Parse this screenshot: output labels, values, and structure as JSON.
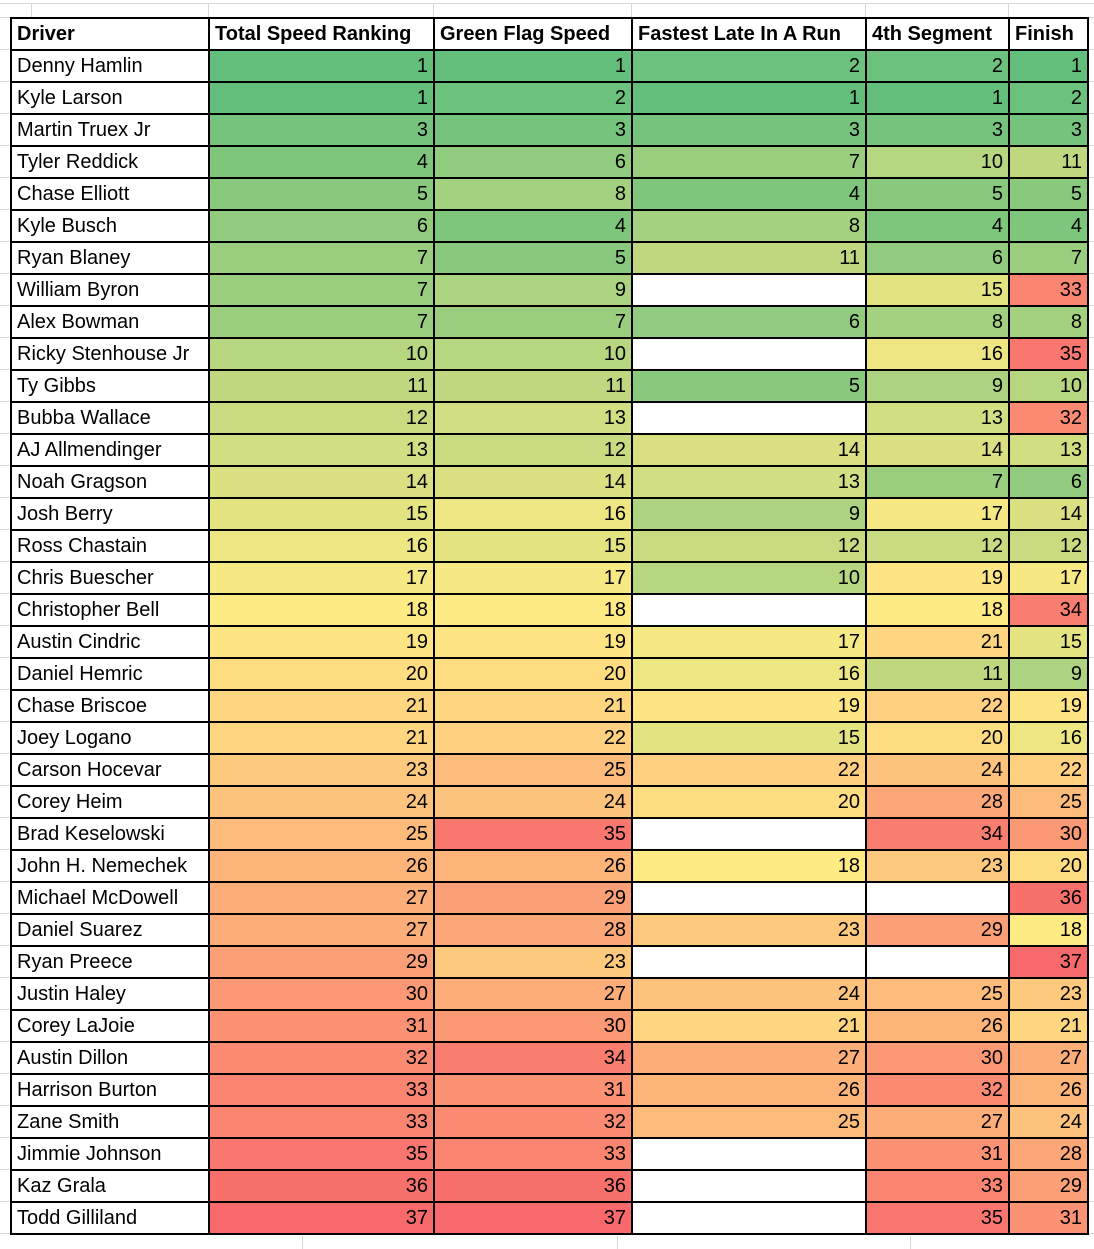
{
  "chart_data": {
    "type": "table",
    "title": "NASCAR driver speed ranking heatmap table",
    "columns": [
      "Driver",
      "Total Speed Ranking",
      "Green Flag Speed",
      "Fastest Late In A Run",
      "4th Segment",
      "Finish"
    ],
    "rows": [
      {
        "driver": "Denny Hamlin",
        "values": [
          1,
          1,
          2,
          2,
          1
        ]
      },
      {
        "driver": "Kyle Larson",
        "values": [
          1,
          2,
          1,
          1,
          2
        ]
      },
      {
        "driver": "Martin Truex Jr",
        "values": [
          3,
          3,
          3,
          3,
          3
        ]
      },
      {
        "driver": "Tyler Reddick",
        "values": [
          4,
          6,
          7,
          10,
          11
        ]
      },
      {
        "driver": "Chase Elliott",
        "values": [
          5,
          8,
          4,
          5,
          5
        ]
      },
      {
        "driver": "Kyle Busch",
        "values": [
          6,
          4,
          8,
          4,
          4
        ]
      },
      {
        "driver": "Ryan Blaney",
        "values": [
          7,
          5,
          11,
          6,
          7
        ]
      },
      {
        "driver": "William Byron",
        "values": [
          7,
          9,
          null,
          15,
          33
        ]
      },
      {
        "driver": "Alex Bowman",
        "values": [
          7,
          7,
          6,
          8,
          8
        ]
      },
      {
        "driver": "Ricky Stenhouse Jr",
        "values": [
          10,
          10,
          null,
          16,
          35
        ]
      },
      {
        "driver": "Ty Gibbs",
        "values": [
          11,
          11,
          5,
          9,
          10
        ]
      },
      {
        "driver": "Bubba Wallace",
        "values": [
          12,
          13,
          null,
          13,
          32
        ]
      },
      {
        "driver": "AJ Allmendinger",
        "values": [
          13,
          12,
          14,
          14,
          13
        ]
      },
      {
        "driver": "Noah Gragson",
        "values": [
          14,
          14,
          13,
          7,
          6
        ]
      },
      {
        "driver": "Josh Berry",
        "values": [
          15,
          16,
          9,
          17,
          14
        ]
      },
      {
        "driver": "Ross Chastain",
        "values": [
          16,
          15,
          12,
          12,
          12
        ]
      },
      {
        "driver": "Chris Buescher",
        "values": [
          17,
          17,
          10,
          19,
          17
        ]
      },
      {
        "driver": "Christopher Bell",
        "values": [
          18,
          18,
          null,
          18,
          34
        ]
      },
      {
        "driver": "Austin Cindric",
        "values": [
          19,
          19,
          17,
          21,
          15
        ]
      },
      {
        "driver": "Daniel Hemric",
        "values": [
          20,
          20,
          16,
          11,
          9
        ]
      },
      {
        "driver": "Chase Briscoe",
        "values": [
          21,
          21,
          19,
          22,
          19
        ]
      },
      {
        "driver": "Joey Logano",
        "values": [
          21,
          22,
          15,
          20,
          16
        ]
      },
      {
        "driver": "Carson Hocevar",
        "values": [
          23,
          25,
          22,
          24,
          22
        ]
      },
      {
        "driver": "Corey Heim",
        "values": [
          24,
          24,
          20,
          28,
          25
        ]
      },
      {
        "driver": "Brad Keselowski",
        "values": [
          25,
          35,
          null,
          34,
          30
        ]
      },
      {
        "driver": "John H. Nemechek",
        "values": [
          26,
          26,
          18,
          23,
          20
        ]
      },
      {
        "driver": "Michael McDowell",
        "values": [
          27,
          29,
          null,
          null,
          36
        ]
      },
      {
        "driver": "Daniel Suarez",
        "values": [
          27,
          28,
          23,
          29,
          18
        ]
      },
      {
        "driver": "Ryan Preece",
        "values": [
          29,
          23,
          null,
          null,
          37
        ]
      },
      {
        "driver": "Justin Haley",
        "values": [
          30,
          27,
          24,
          25,
          23
        ]
      },
      {
        "driver": "Corey LaJoie",
        "values": [
          31,
          30,
          21,
          26,
          21
        ]
      },
      {
        "driver": "Austin Dillon",
        "values": [
          32,
          34,
          27,
          30,
          27
        ]
      },
      {
        "driver": "Harrison Burton",
        "values": [
          33,
          31,
          26,
          32,
          26
        ]
      },
      {
        "driver": "Zane Smith",
        "values": [
          33,
          32,
          25,
          27,
          24
        ]
      },
      {
        "driver": "Jimmie Johnson",
        "values": [
          35,
          33,
          null,
          31,
          28
        ]
      },
      {
        "driver": "Kaz Grala",
        "values": [
          36,
          36,
          null,
          33,
          29
        ]
      },
      {
        "driver": "Todd Gilliland",
        "values": [
          37,
          37,
          null,
          35,
          31
        ]
      }
    ],
    "heatmap": {
      "description": "3-color scale applied to all rank cells; blank cells are white",
      "min_value": 1,
      "mid_value": 18,
      "max_value": 37,
      "min_color": "#63BE7B",
      "mid_color": "#FFEB84",
      "max_color": "#F8696B",
      "empty_color": "#FFFFFF"
    },
    "legend_position": "none",
    "grid": "on"
  },
  "style": {
    "cell_border_color": "#000000",
    "text_color": "#000000",
    "header_bg": "#FFFFFF",
    "gridline_color": "#D6D6D6",
    "canvas_bg": "#FFFFFF"
  }
}
